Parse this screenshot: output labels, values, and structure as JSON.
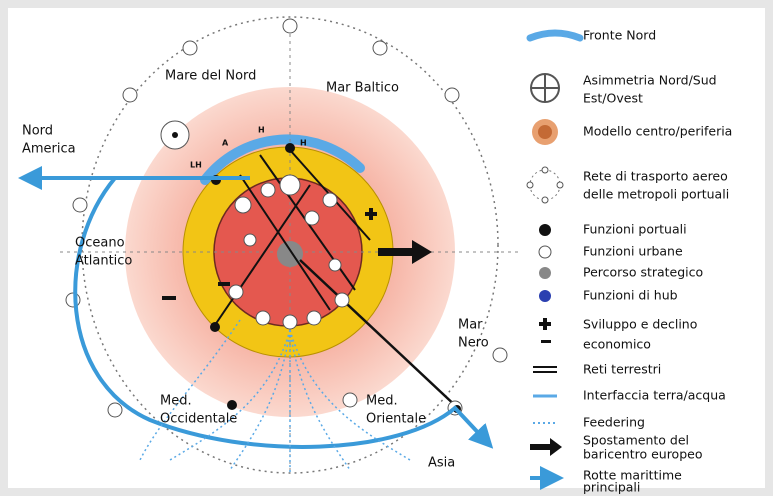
{
  "map": {
    "labels": [
      {
        "lines": [
          "Mare del Nord"
        ]
      },
      {
        "lines": [
          "Mar Baltico"
        ]
      },
      {
        "lines": [
          "Nord",
          "America"
        ]
      },
      {
        "lines": [
          "Oceano",
          "Atlantico"
        ]
      },
      {
        "lines": [
          "Mar",
          "Nero"
        ]
      },
      {
        "lines": [
          "Med.",
          "Occidentale"
        ]
      },
      {
        "lines": [
          "Med.",
          "Orientale"
        ]
      },
      {
        "lines": [
          "Asia"
        ]
      }
    ],
    "small_labels": [
      "A",
      "H",
      "H",
      "LH"
    ]
  },
  "legend": [
    {
      "lines": [
        "Fronte Nord"
      ]
    },
    {
      "lines": [
        "Asimmetria Nord/Sud",
        "Est/Ovest"
      ]
    },
    {
      "lines": [
        "Modello centro/periferia"
      ]
    },
    {
      "lines": [
        "Rete di trasporto aereo",
        "delle metropoli portuali"
      ]
    },
    {
      "lines": [
        "Funzioni portuali"
      ]
    },
    {
      "lines": [
        "Funzioni urbane"
      ]
    },
    {
      "lines": [
        "Percorso strategico"
      ]
    },
    {
      "lines": [
        "Funzioni di hub"
      ]
    },
    {
      "lines": [
        "Sviluppo e declino",
        "economico"
      ]
    },
    {
      "lines": [
        "Reti terrestri"
      ]
    },
    {
      "lines": [
        "Interfaccia terra/acqua"
      ]
    },
    {
      "lines": [
        "Feedering"
      ]
    },
    {
      "lines": [
        "Spostamento del",
        "baricentro europeo"
      ]
    },
    {
      "lines": [
        "Rotte marittime",
        "principali"
      ]
    }
  ]
}
